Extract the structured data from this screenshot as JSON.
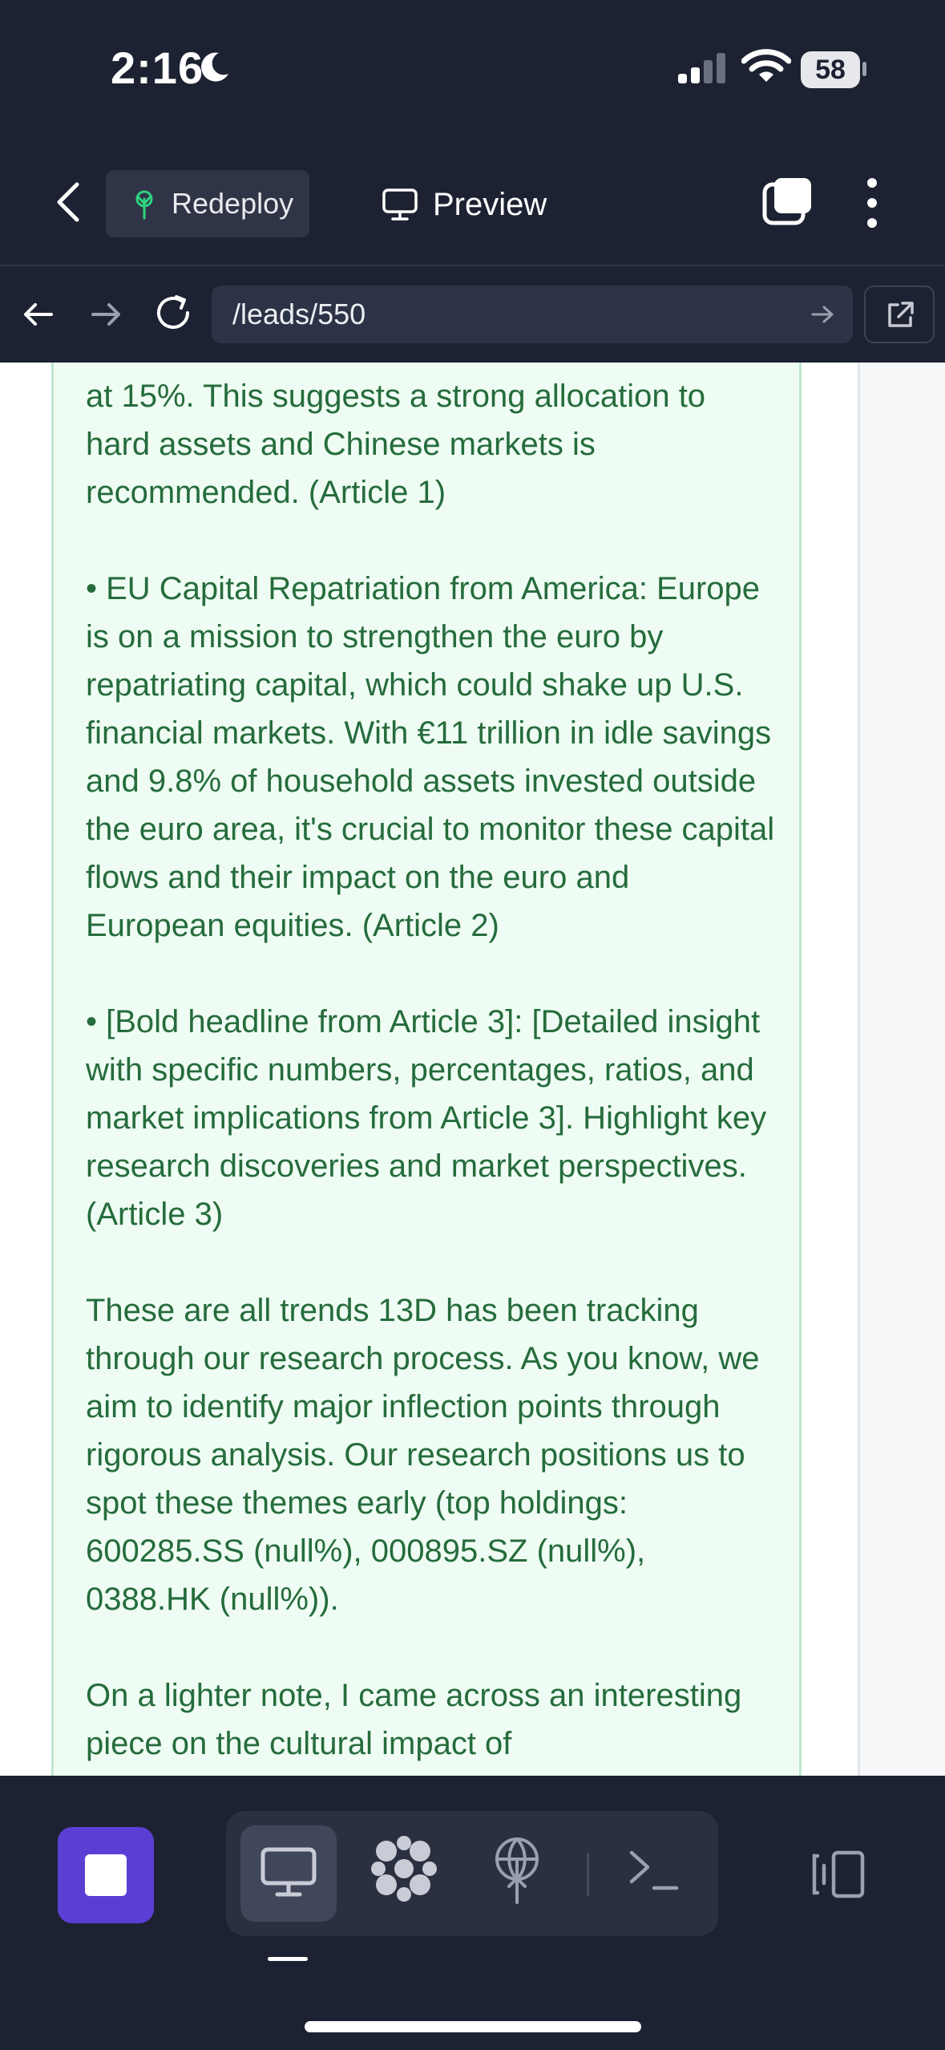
{
  "status": {
    "time": "2:16",
    "battery": "58"
  },
  "header": {
    "redeploy_label": "Redeploy",
    "preview_label": "Preview"
  },
  "browser": {
    "url": "/leads/550"
  },
  "email": {
    "paragraphs": [
      "at 15%. This suggests a strong allocation to hard assets and Chinese markets is recommended. (Article 1)",
      "• EU Capital Repatriation from America: Europe is on a mission to strengthen the euro by repatriating capital, which could shake up U.S. financial markets. With €11 trillion in idle savings and 9.8% of household assets invested outside the euro area, it's crucial to monitor these capital flows and their impact on the euro and European equities. (Article 2)",
      "• [Bold headline from Article 3]: [Detailed insight with specific numbers, percentages, ratios, and market implications from Article 3]. Highlight key research discoveries and market perspectives. (Article 3)",
      "These are all trends 13D has been tracking through our research process. As you know, we aim to identify major inflection points through rigorous analysis. Our research positions us to spot these themes early (top holdings: 600285.SS (null%), 000895.SZ (null%), 0388.HK (null%)).",
      "On a lighter note, I came across an interesting piece on the cultural impact of"
    ]
  },
  "icons": {
    "status": [
      "moon-icon",
      "signal-icon",
      "wifi-icon",
      "battery-icon"
    ],
    "header": [
      "chevron-left-icon",
      "sprout-icon",
      "monitor-icon",
      "tabs-icon",
      "more-vertical-icon"
    ],
    "browser": [
      "arrow-left-icon",
      "arrow-right-icon",
      "reload-icon",
      "arrow-right-icon",
      "external-link-icon"
    ],
    "toolbar": [
      "stop-icon",
      "monitor-icon",
      "grid-icon",
      "globe-icon",
      "terminal-icon",
      "layout-icon"
    ]
  },
  "colors": {
    "accent": "#5b3fd4",
    "email_text": "#256c3c",
    "email_bg": "#effcf3",
    "chrome_bg": "#1d2233"
  }
}
